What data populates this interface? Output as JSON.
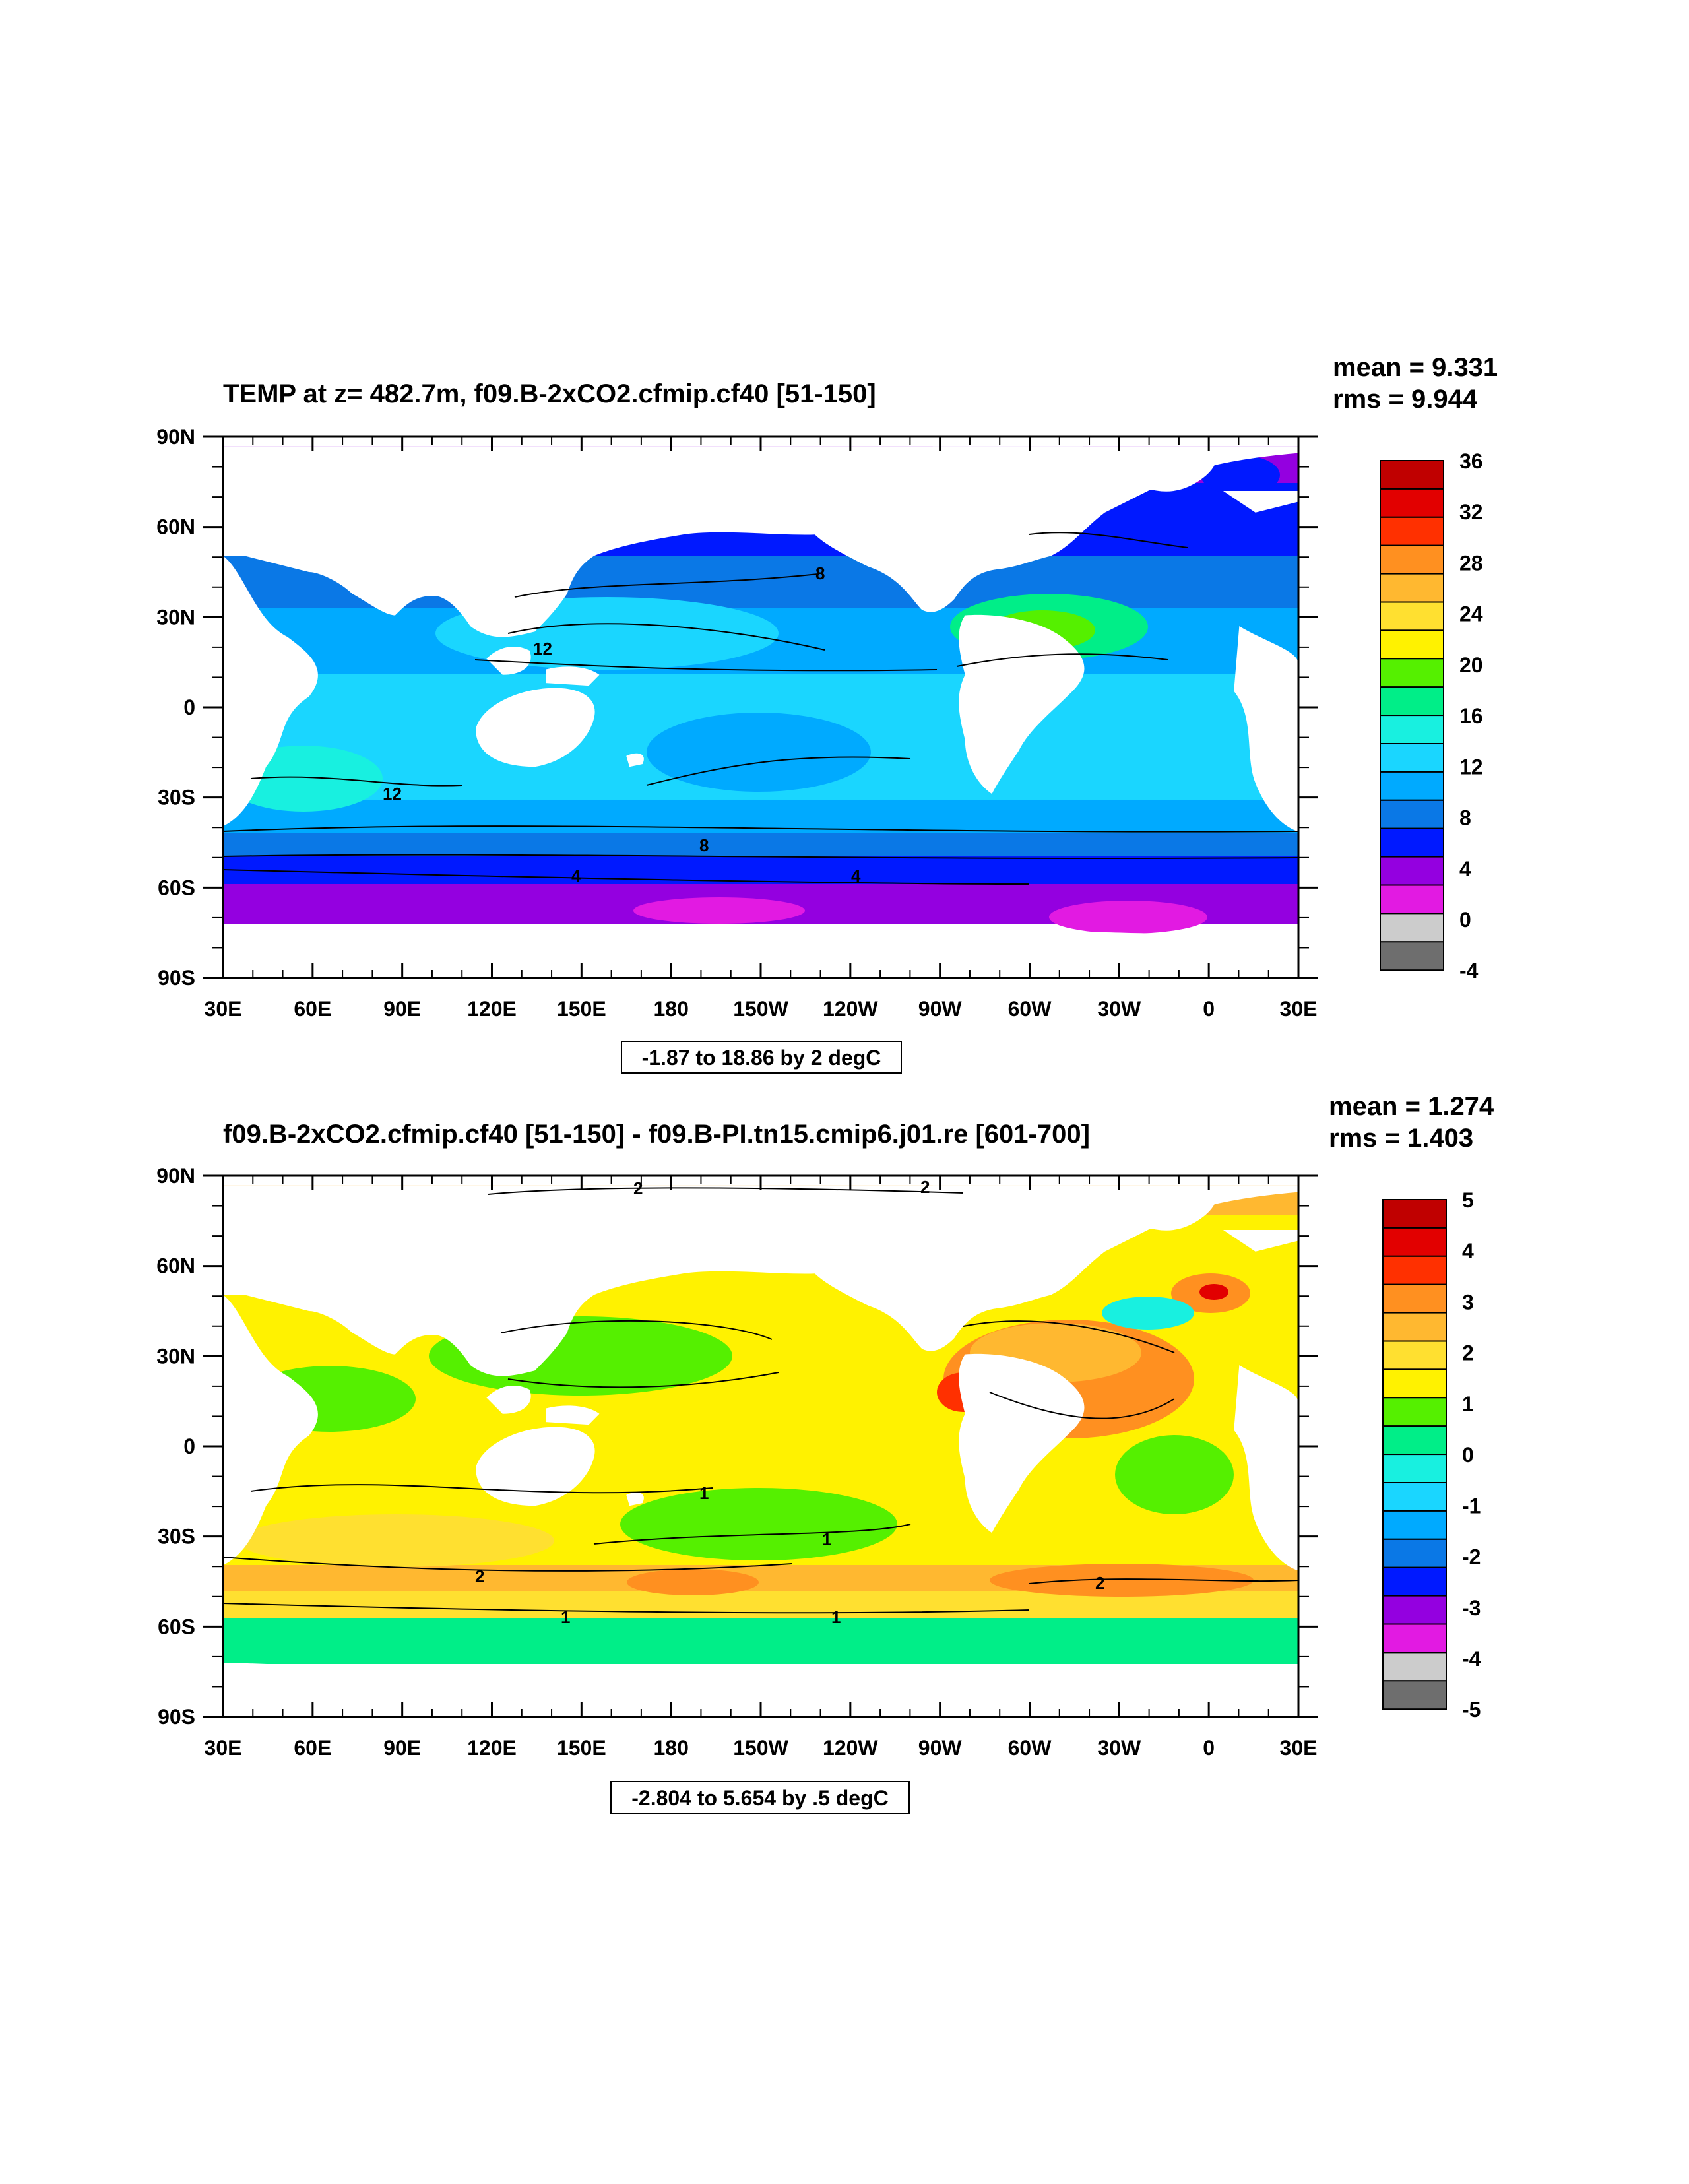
{
  "colors": {
    "neg5": "#6e6e6e",
    "neg4": "#cccccc",
    "neg3": "#e21ae2",
    "neg2": "#9400e0",
    "neg1": "#0019ff",
    "c0": "#0a78e6",
    "c1": "#00aaff",
    "c2": "#1ad6ff",
    "c3": "#18f0e0",
    "c4": "#00ee88",
    "c5": "#55f000",
    "c6": "#fff200",
    "c7": "#ffe030",
    "c8": "#ffb830",
    "c9": "#ff9020",
    "c10": "#ff3000",
    "c11": "#e20000",
    "c12": "#c00000",
    "land": "#ffffff"
  },
  "panels": [
    {
      "title": "TEMP at z= 482.7m, f09.B-2xCO2.cfmip.cf40 [51-150]",
      "mean_text": "mean = 9.331",
      "rms_text": "rms = 9.944",
      "range_text": "-1.87 to 18.86 by 2 degC",
      "x_ticks": [
        "30E",
        "60E",
        "90E",
        "120E",
        "150E",
        "180",
        "150W",
        "120W",
        "90W",
        "60W",
        "30W",
        "0",
        "30E"
      ],
      "y_ticks": [
        "90N",
        "60N",
        "30N",
        "0",
        "30S",
        "60S",
        "90S"
      ],
      "colorbar_labels": [
        "36",
        "32",
        "28",
        "24",
        "20",
        "16",
        "12",
        "8",
        "4",
        "0",
        "-4"
      ],
      "contour_labels": [
        "12",
        "8",
        "12",
        "8",
        "4",
        "4"
      ]
    },
    {
      "title": "f09.B-2xCO2.cfmip.cf40 [51-150] - f09.B-PI.tn15.cmip6.j01.re [601-700]",
      "mean_text": "mean = 1.274",
      "rms_text": "rms = 1.403",
      "range_text": "-2.804 to 5.654 by .5 degC",
      "x_ticks": [
        "30E",
        "60E",
        "90E",
        "120E",
        "150E",
        "180",
        "150W",
        "120W",
        "90W",
        "60W",
        "30W",
        "0",
        "30E"
      ],
      "y_ticks": [
        "90N",
        "60N",
        "30N",
        "0",
        "30S",
        "60S",
        "90S"
      ],
      "colorbar_labels": [
        "5",
        "4",
        "3",
        "2",
        "1",
        "0",
        "-1",
        "-2",
        "-3",
        "-4",
        "-5"
      ],
      "contour_labels": [
        "2",
        "2",
        "1",
        "1",
        "2",
        "2",
        "1",
        "1"
      ]
    }
  ]
}
